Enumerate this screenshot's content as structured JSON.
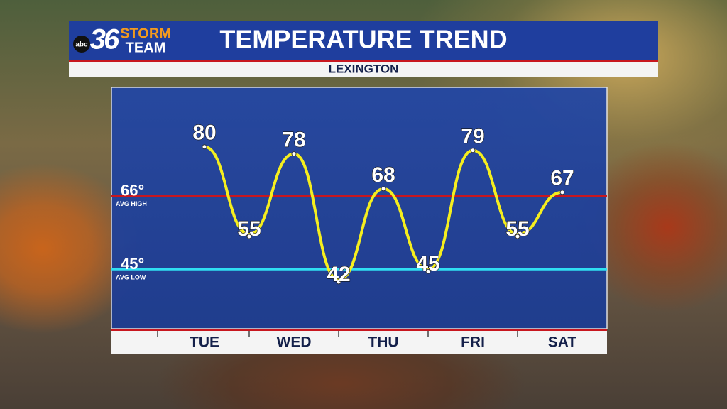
{
  "brand": {
    "network": "abc",
    "channel": "36",
    "team_top": "STORM",
    "team_bottom": "TEAM"
  },
  "chart_data": {
    "type": "line",
    "title": "TEMPERATURE TREND",
    "subtitle": "LEXINGTON",
    "categories": [
      "TUE",
      null,
      "WED",
      null,
      "THU",
      null,
      "FRI",
      null,
      "SAT"
    ],
    "values": [
      80,
      55,
      78,
      42,
      68,
      45,
      79,
      55,
      67
    ],
    "color": "#f5ee1e",
    "ylim": [
      28,
      97
    ],
    "reference_lines": [
      {
        "value": 66,
        "label": "66°",
        "name": "AVG HIGH",
        "color": "#c8171f"
      },
      {
        "value": 45,
        "label": "45°",
        "name": "AVG LOW",
        "color": "#2fe0f2"
      }
    ]
  }
}
